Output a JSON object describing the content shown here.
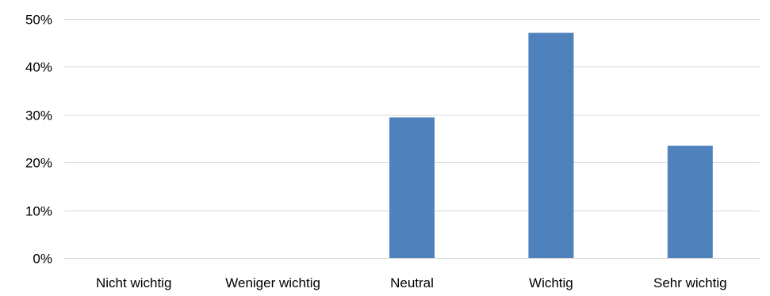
{
  "chart_data": {
    "type": "bar",
    "title": "",
    "xlabel": "",
    "ylabel": "",
    "categories": [
      "Nicht wichtig",
      "Weniger wichtig",
      "Neutral",
      "Wichtig",
      "Sehr wichtig"
    ],
    "values": [
      0,
      0,
      29.4,
      47.1,
      23.5
    ],
    "ylim": [
      0,
      50
    ],
    "yticks": [
      0,
      10,
      20,
      30,
      40,
      50
    ],
    "ytick_labels": [
      "0%",
      "10%",
      "20%",
      "30%",
      "40%",
      "50%"
    ],
    "value_unit": "%",
    "grid": true,
    "legend": "none",
    "bar_color": "#4f81bd",
    "gridline_color": "#d9d9d9"
  }
}
